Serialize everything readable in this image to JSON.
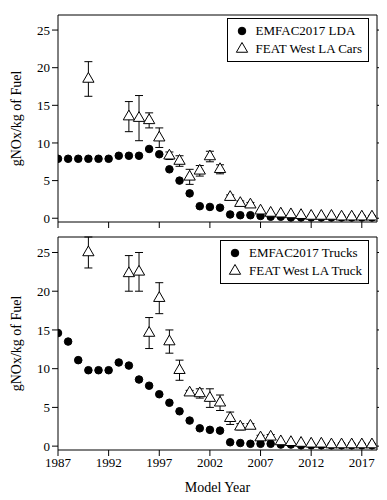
{
  "chart_data": [
    {
      "type": "scatter",
      "ylabel": "gNOx/kg of Fuel",
      "legend": "upper right",
      "tick_labels": "y",
      "x": [
        1987,
        1988,
        1989,
        1990,
        1991,
        1992,
        1993,
        1994,
        1995,
        1996,
        1997,
        1998,
        1999,
        2000,
        2001,
        2002,
        2003,
        2004,
        2005,
        2006,
        2007,
        2008,
        2009,
        2010,
        2011,
        2012,
        2013,
        2014,
        2015,
        2016,
        2017,
        2018
      ],
      "xlim": [
        1987,
        2018.5
      ],
      "xticks": [
        1987,
        1992,
        1997,
        2002,
        2007,
        2012,
        2017
      ],
      "ylim": [
        -0.5,
        27
      ],
      "yticks": [
        0,
        5,
        10,
        15,
        20,
        25
      ],
      "series": [
        {
          "name": "EMFAC2017 LDA",
          "color": "#000000",
          "marker": "circle",
          "values": [
            7.9,
            7.9,
            7.9,
            7.9,
            7.9,
            7.9,
            8.3,
            8.3,
            8.3,
            9.2,
            8.5,
            6.5,
            5.0,
            3.3,
            1.6,
            1.5,
            1.4,
            0.5,
            0.4,
            0.4,
            0.3,
            0.2,
            0.2,
            0.1,
            0.1,
            0.1,
            0.1,
            0.1,
            0.1,
            0.1,
            0.1,
            0.1
          ]
        },
        {
          "name": "FEAT West LA Cars",
          "color": "#000000",
          "marker": "triangle-open",
          "values": [
            null,
            null,
            null,
            18.5,
            null,
            null,
            null,
            13.5,
            13.3,
            13.0,
            10.7,
            8.3,
            7.6,
            5.5,
            6.3,
            8.2,
            6.5,
            2.8,
            2.0,
            1.8,
            1.0,
            0.7,
            0.6,
            0.5,
            0.4,
            0.3,
            0.3,
            0.3,
            0.2,
            0.2,
            0.2,
            0.2
          ],
          "errors": [
            null,
            null,
            null,
            2.3,
            null,
            null,
            null,
            2.0,
            3.0,
            1.0,
            1.3,
            0.5,
            0.7,
            1.0,
            0.7,
            0.7,
            0.6,
            0.3,
            0.3,
            0.3,
            null,
            null,
            null,
            null,
            null,
            null,
            null,
            null,
            null,
            null,
            null,
            null
          ]
        }
      ]
    },
    {
      "type": "scatter",
      "xlabel": "Model Year",
      "ylabel": "gNOx/kg of Fuel",
      "legend": "upper right",
      "x": [
        1987,
        1988,
        1989,
        1990,
        1991,
        1992,
        1993,
        1994,
        1995,
        1996,
        1997,
        1998,
        1999,
        2000,
        2001,
        2002,
        2003,
        2004,
        2005,
        2006,
        2007,
        2008,
        2009,
        2010,
        2011,
        2012,
        2013,
        2014,
        2015,
        2016,
        2017,
        2018
      ],
      "xlim": [
        1987,
        2018.5
      ],
      "xticks": [
        1987,
        1992,
        1997,
        2002,
        2007,
        2012,
        2017
      ],
      "ylim": [
        -0.5,
        27
      ],
      "yticks": [
        0,
        5,
        10,
        15,
        20,
        25
      ],
      "series": [
        {
          "name": "EMFAC2017 Trucks",
          "color": "#000000",
          "marker": "circle",
          "values": [
            14.6,
            13.5,
            11.1,
            9.8,
            9.8,
            9.8,
            10.8,
            10.4,
            8.6,
            7.8,
            6.7,
            5.6,
            4.5,
            3.3,
            2.3,
            2.1,
            2.0,
            0.5,
            0.4,
            0.3,
            0.3,
            0.3,
            0.2,
            0.2,
            0.1,
            0.1,
            0.1,
            0.1,
            0.1,
            0.1,
            0.1,
            0.1
          ]
        },
        {
          "name": "FEAT West LA Truck",
          "color": "#000000",
          "marker": "triangle-open",
          "values": [
            null,
            null,
            null,
            25.0,
            null,
            null,
            null,
            22.3,
            22.5,
            14.6,
            19.1,
            13.5,
            9.8,
            6.9,
            6.8,
            6.2,
            5.6,
            3.6,
            2.5,
            2.6,
            1.1,
            1.2,
            0.6,
            0.5,
            0.4,
            0.3,
            0.3,
            0.2,
            0.2,
            0.2,
            0.2,
            0.2
          ],
          "errors": [
            null,
            null,
            null,
            2.0,
            null,
            null,
            null,
            2.3,
            2.5,
            2.0,
            2.0,
            1.5,
            1.3,
            0.3,
            0.6,
            1.2,
            1.0,
            0.8,
            0.4,
            0.3,
            0.3,
            0.3,
            null,
            null,
            null,
            null,
            null,
            null,
            null,
            null,
            null,
            null
          ]
        }
      ]
    }
  ]
}
